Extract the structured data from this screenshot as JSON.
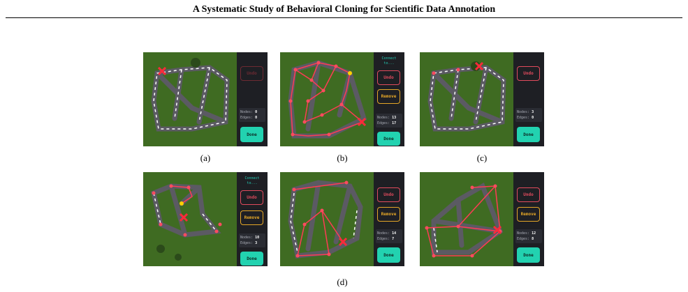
{
  "paper": {
    "title": "A Systematic Study of Behavioral Cloning for Scientific Data Annotation"
  },
  "ui": {
    "connect_label": "Connect\nto...",
    "undo": "Undo",
    "remove": "Remove",
    "done": "Done",
    "nodes_label": "Nodes:",
    "edges_label": "Edges:"
  },
  "panels": [
    {
      "caption": "(a)",
      "nodes": "0",
      "edges": "0"
    },
    {
      "caption": "(b)",
      "nodes": "13",
      "edges": "17"
    },
    {
      "caption": "(c)",
      "nodes": "3",
      "edges": "0"
    },
    {
      "nodes": "10",
      "edges": "3"
    },
    {
      "nodes": "14",
      "edges": "7"
    },
    {
      "nodes": "12",
      "edges": "8"
    }
  ],
  "captions": {
    "d": "(d)"
  },
  "colors": {
    "grass": "#3f6b22",
    "road": "#5b5a63",
    "edge": "#ff3b55",
    "node": "#ff4b5f",
    "accent": "#23d1b9"
  }
}
